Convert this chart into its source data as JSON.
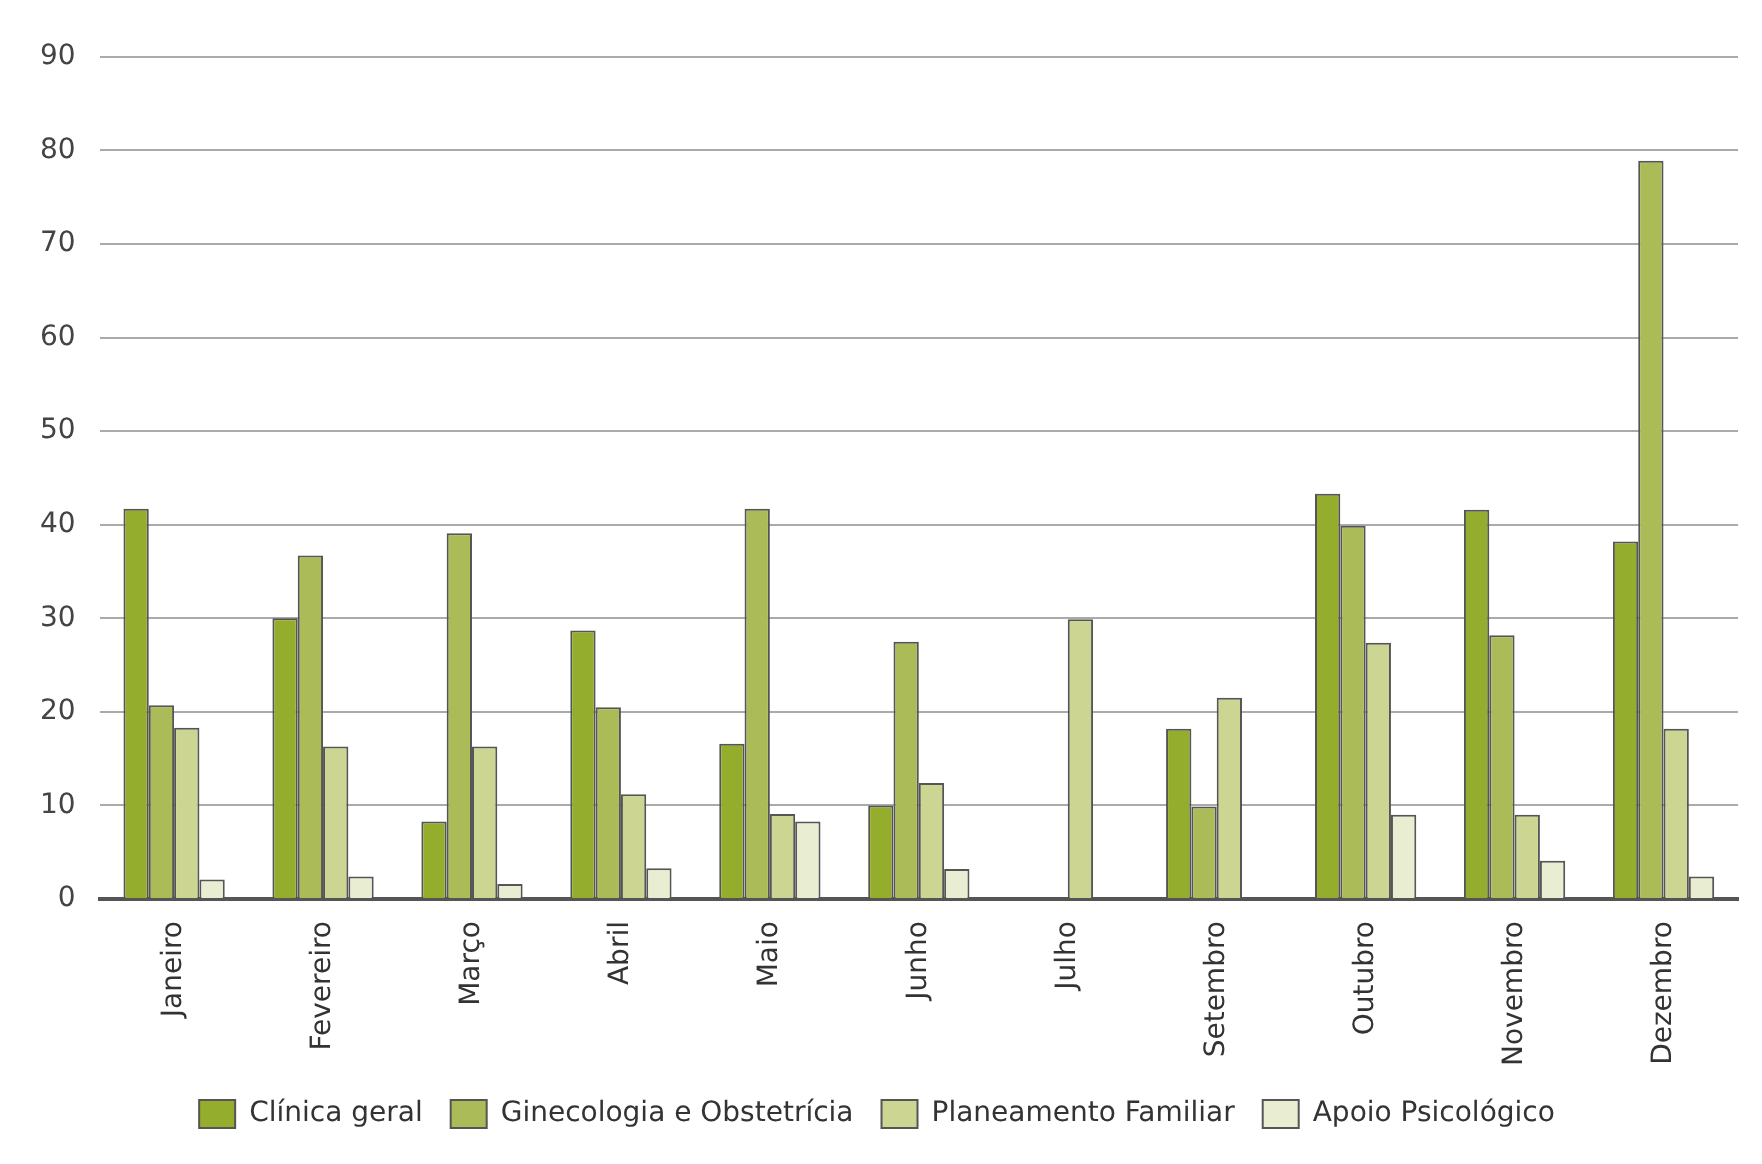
{
  "chart_data": {
    "type": "bar",
    "categories": [
      "Janeiro",
      "Fevereiro",
      "Março",
      "Abril",
      "Maio",
      "Junho",
      "Julho",
      "Setembro",
      "Outubro",
      "Novembro",
      "Dezembro"
    ],
    "series": [
      {
        "name": "Clínica geral",
        "color": "#95ad2c",
        "values": [
          41.7,
          30,
          8.3,
          28.7,
          16.6,
          10,
          null,
          18.2,
          43.3,
          41.6,
          38.2
        ]
      },
      {
        "name": "Ginecologia e Obstetrícia",
        "color": "#abbb58",
        "values": [
          20.7,
          36.7,
          39.1,
          20.5,
          41.7,
          27.5,
          null,
          9.9,
          39.9,
          28.2,
          78.9
        ]
      },
      {
        "name": "Planeamento Familiar",
        "color": "#cdd592",
        "values": [
          18.3,
          16.3,
          16.3,
          11.2,
          9.1,
          12.4,
          29.9,
          21.5,
          27.4,
          9,
          18.2
        ]
      },
      {
        "name": "Apoio Psicológico",
        "color": "#e9eed2",
        "values": [
          2.1,
          2.4,
          1.6,
          3.3,
          8.3,
          3.2,
          null,
          null,
          9,
          4.1,
          2.4
        ]
      }
    ],
    "ylim": [
      0,
      90
    ],
    "yticks": [
      0,
      10,
      20,
      30,
      40,
      50,
      60,
      70,
      80,
      90
    ],
    "grid": "y",
    "legend": "bottom"
  }
}
